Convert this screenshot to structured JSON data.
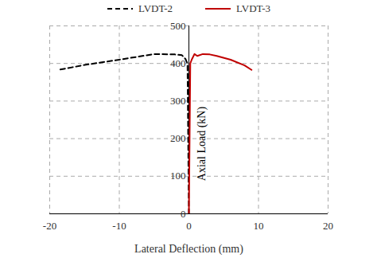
{
  "chart_data": {
    "type": "line",
    "x_label": "Lateral Deflection (mm)",
    "y_label": "Axial Load (kN)",
    "xlim": [
      -20,
      20
    ],
    "xticks": [
      -20,
      -10,
      0,
      10,
      20
    ],
    "ylim": [
      0,
      500
    ],
    "yticks": [
      0,
      100,
      200,
      300,
      400,
      500
    ],
    "grid": true,
    "legend": "top",
    "series": [
      {
        "name": "LVDT-2",
        "color": "#000000",
        "line_style": "dashed",
        "x": [
          0,
          -0.1,
          -0.2,
          -0.5,
          -1,
          -2,
          -5,
          -10,
          -15,
          -18.7
        ],
        "values": [
          0,
          200,
          400,
          412,
          422,
          424,
          425,
          410,
          396,
          383
        ]
      },
      {
        "name": "LVDT-3",
        "color": "#c00000",
        "line_style": "solid",
        "x": [
          0,
          0.1,
          0.2,
          0.4,
          0.8,
          1.2,
          2,
          3,
          4,
          6,
          8,
          9
        ],
        "values": [
          0,
          200,
          400,
          410,
          425,
          420,
          425,
          424,
          420,
          410,
          395,
          383
        ]
      }
    ]
  }
}
